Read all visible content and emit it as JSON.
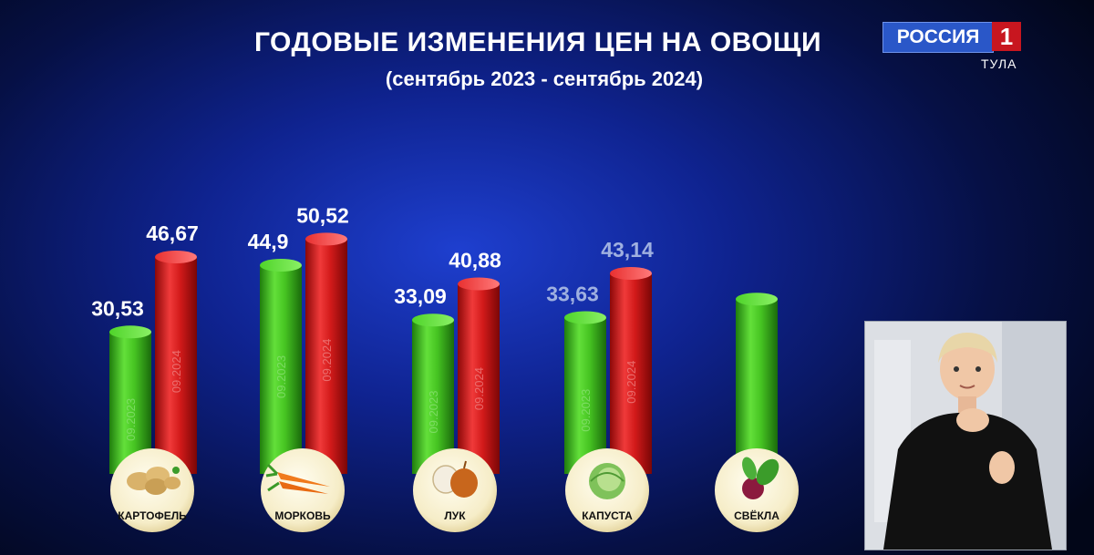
{
  "header": {
    "title": "ГОДОВЫЕ ИЗМЕНЕНИЯ ЦЕН НА ОВОЩИ",
    "subtitle": "(сентябрь 2023 - сентябрь 2024)"
  },
  "channel": {
    "name": "РОССИЯ",
    "number": "1",
    "region": "ТУЛА"
  },
  "chart_data": {
    "type": "bar",
    "categories": [
      "КАРТОФЕЛЬ",
      "МОРКОВЬ",
      "ЛУК",
      "КАПУСТА",
      "СВЁКЛА"
    ],
    "series": [
      {
        "name": "09.2023",
        "values": [
          30.53,
          44.9,
          33.09,
          33.63,
          null
        ],
        "labels": [
          "30,53",
          "44,9",
          "33,09",
          "33,63",
          ""
        ],
        "color": "#3fbf1f"
      },
      {
        "name": "09.2024",
        "values": [
          46.67,
          50.52,
          40.88,
          43.14,
          null
        ],
        "labels": [
          "46,67",
          "50,52",
          "40,88",
          "43,14",
          ""
        ],
        "color": "#d21818"
      }
    ],
    "beet_2023_bar_level": 37.6,
    "colors": {
      "green": "#3fbf1f",
      "red": "#d21818",
      "label": "#ffffff",
      "label_faded": "#9fb0e0"
    },
    "icons": [
      "potato-icon",
      "carrot-icon",
      "onion-icon",
      "cabbage-icon",
      "beet-icon"
    ]
  }
}
